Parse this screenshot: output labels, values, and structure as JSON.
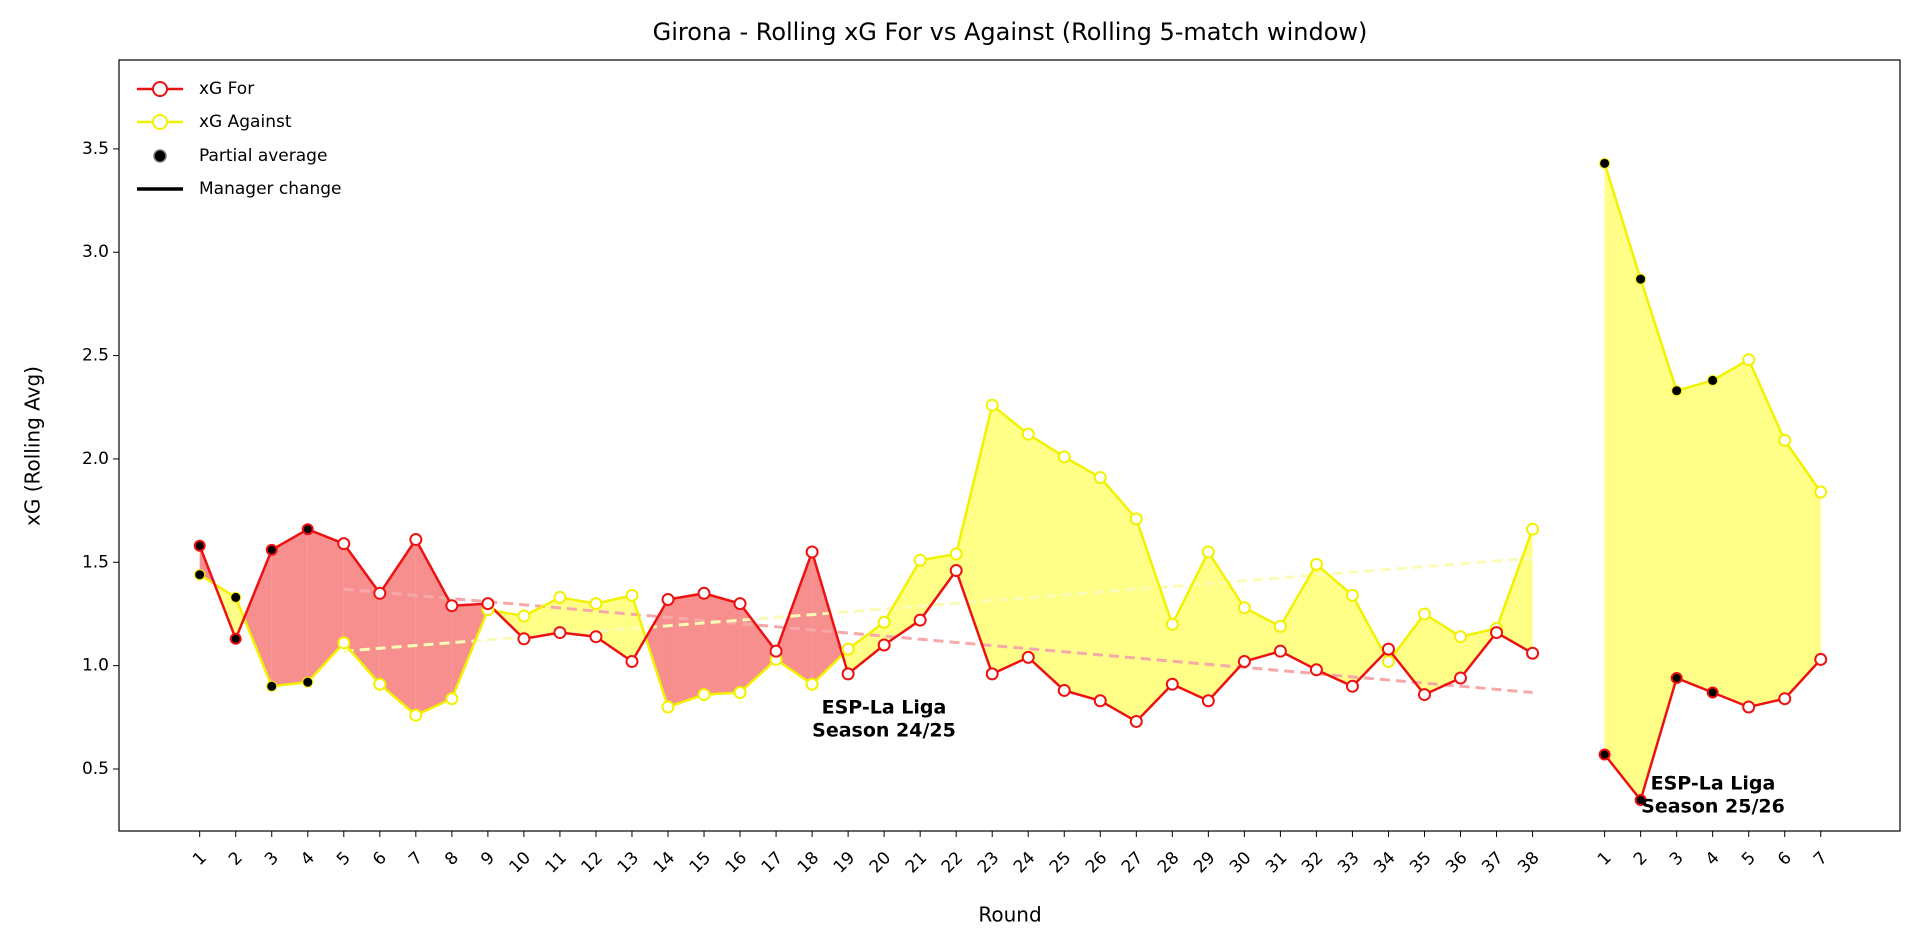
{
  "chart_data": {
    "type": "line",
    "title": "Girona - Rolling xG For vs Against (Rolling 5-match window)",
    "xlabel": "Round",
    "ylabel": "xG (Rolling Avg)",
    "categories": [
      "1",
      "2",
      "3",
      "4",
      "5",
      "6",
      "7",
      "8",
      "9",
      "10",
      "11",
      "12",
      "13",
      "14",
      "15",
      "16",
      "17",
      "18",
      "19",
      "20",
      "21",
      "22",
      "23",
      "24",
      "25",
      "26",
      "27",
      "28",
      "29",
      "30",
      "31",
      "32",
      "33",
      "34",
      "35",
      "36",
      "37",
      "38",
      null,
      "1",
      "2",
      "3",
      "4",
      "5",
      "6",
      "7"
    ],
    "series": [
      {
        "name": "xG For",
        "color": "#ee1111",
        "fill_color": "#f78f8f",
        "trend_color": "#f7a8a8",
        "values": [
          1.58,
          1.13,
          1.56,
          1.66,
          1.59,
          1.35,
          1.61,
          1.29,
          1.3,
          1.13,
          1.16,
          1.14,
          1.02,
          1.32,
          1.35,
          1.3,
          1.07,
          1.55,
          0.96,
          1.1,
          1.22,
          1.46,
          0.96,
          1.04,
          0.88,
          0.83,
          0.73,
          0.91,
          0.83,
          1.02,
          1.07,
          0.98,
          0.9,
          1.08,
          0.86,
          0.94,
          1.16,
          1.06,
          null,
          0.57,
          0.35,
          0.94,
          0.87,
          0.8,
          0.84,
          1.03
        ],
        "trend": [
          1.37,
          0.87
        ]
      },
      {
        "name": "xG Against",
        "color": "#f2f200",
        "fill_color": "#ffff88",
        "trend_color": "#fbfbb8",
        "values": [
          1.44,
          1.33,
          0.9,
          0.92,
          1.11,
          0.91,
          0.76,
          0.84,
          1.27,
          1.24,
          1.33,
          1.3,
          1.34,
          0.8,
          0.86,
          0.87,
          1.03,
          0.91,
          1.08,
          1.21,
          1.51,
          1.54,
          2.26,
          2.12,
          2.01,
          1.91,
          1.71,
          1.2,
          1.55,
          1.28,
          1.19,
          1.49,
          1.34,
          1.02,
          1.25,
          1.14,
          1.18,
          1.66,
          null,
          3.43,
          2.87,
          2.33,
          2.38,
          2.48,
          2.09,
          1.84
        ],
        "trend": [
          1.07,
          1.52
        ]
      }
    ],
    "partial": [
      true,
      true,
      true,
      true,
      false,
      false,
      false,
      false,
      false,
      false,
      false,
      false,
      false,
      false,
      false,
      false,
      false,
      false,
      false,
      false,
      false,
      false,
      false,
      false,
      false,
      false,
      false,
      false,
      false,
      false,
      false,
      false,
      false,
      false,
      false,
      false,
      false,
      false,
      null,
      true,
      true,
      true,
      true,
      false,
      false,
      false
    ],
    "trend_span": [
      4,
      37
    ],
    "legend_extra": [
      "Partial average",
      "Manager change"
    ],
    "legend": "upper left",
    "annotations": [
      [
        "ESP-La Liga",
        "Season 24/25"
      ],
      [
        "ESP-La Liga",
        "Season 25/26"
      ]
    ],
    "ylim": [
      0.2,
      3.93
    ],
    "yticks": [
      0.5,
      {
        "value": 1,
        "label": "1.0"
      },
      1.5,
      {
        "value": 2,
        "label": "2.0"
      },
      2.5,
      {
        "value": 3,
        "label": "3.0"
      },
      3.5
    ]
  }
}
